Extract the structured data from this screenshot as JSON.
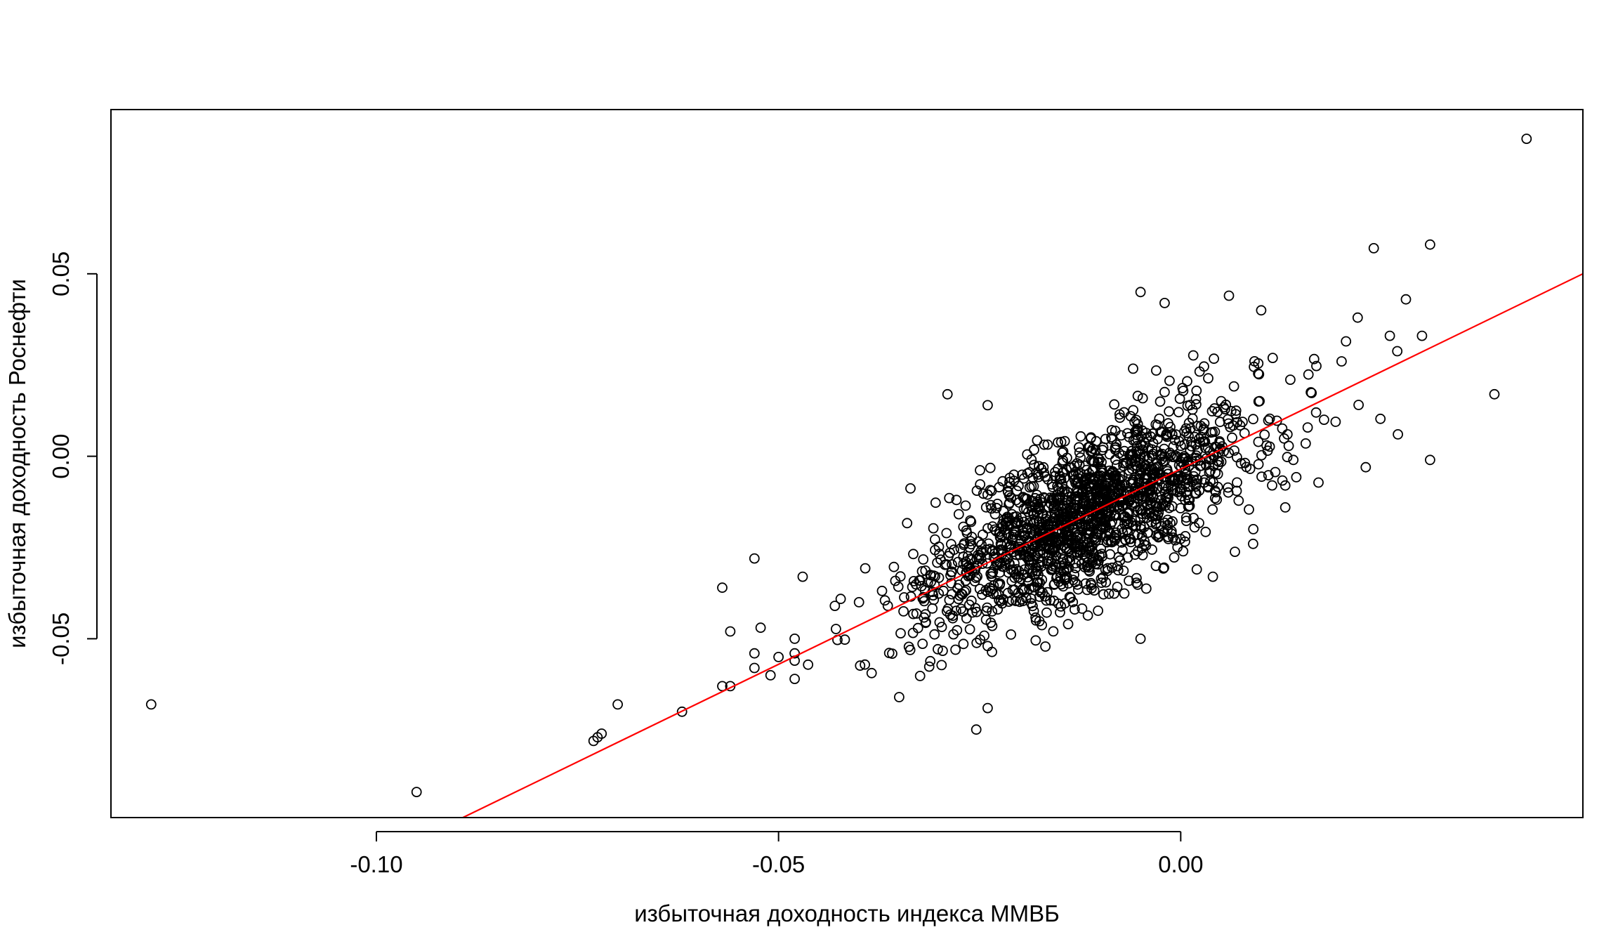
{
  "chart_data": {
    "type": "scatter",
    "title": "",
    "xlabel": "избыточная доходность индекса ММВБ",
    "ylabel": "избыточная доходность Роснефти",
    "xlim": [
      -0.133,
      0.05
    ],
    "ylim": [
      -0.099,
      0.095
    ],
    "x_ticks": [
      -0.1,
      -0.05,
      0.0
    ],
    "x_tick_labels": [
      "-0.10",
      "-0.05",
      "0.00"
    ],
    "y_ticks": [
      -0.05,
      0.0,
      0.05
    ],
    "y_tick_labels": [
      "-0.05",
      "0.00",
      "0.05"
    ],
    "grid": false,
    "point_style": "open-circle",
    "point_color": "#000000",
    "approx_point_count": 1800,
    "regression_line": {
      "color": "#ff0000",
      "intercept": -0.0035,
      "slope": 1.07
    },
    "outliers": [
      {
        "x": -0.128,
        "y": -0.068
      },
      {
        "x": -0.095,
        "y": -0.092
      },
      {
        "x": -0.073,
        "y": -0.078
      },
      {
        "x": -0.0725,
        "y": -0.077
      },
      {
        "x": -0.072,
        "y": -0.076
      },
      {
        "x": -0.07,
        "y": -0.068
      },
      {
        "x": -0.062,
        "y": -0.07
      },
      {
        "x": -0.057,
        "y": -0.063
      },
      {
        "x": -0.056,
        "y": -0.063
      },
      {
        "x": -0.053,
        "y": -0.054
      },
      {
        "x": -0.056,
        "y": -0.048
      },
      {
        "x": -0.057,
        "y": -0.036
      },
      {
        "x": -0.053,
        "y": -0.058
      },
      {
        "x": -0.051,
        "y": -0.06
      },
      {
        "x": -0.048,
        "y": -0.056
      },
      {
        "x": -0.048,
        "y": -0.054
      },
      {
        "x": -0.048,
        "y": -0.05
      },
      {
        "x": -0.047,
        "y": -0.033
      },
      {
        "x": -0.053,
        "y": -0.028
      },
      {
        "x": -0.05,
        "y": -0.055
      },
      {
        "x": -0.043,
        "y": -0.041
      },
      {
        "x": -0.04,
        "y": -0.04
      },
      {
        "x": -0.048,
        "y": -0.061
      },
      {
        "x": -0.024,
        "y": -0.069
      },
      {
        "x": -0.035,
        "y": -0.066
      },
      {
        "x": 0.043,
        "y": 0.087
      },
      {
        "x": 0.024,
        "y": 0.057
      },
      {
        "x": 0.031,
        "y": 0.058
      },
      {
        "x": 0.028,
        "y": 0.043
      },
      {
        "x": 0.022,
        "y": 0.038
      },
      {
        "x": 0.026,
        "y": 0.033
      },
      {
        "x": 0.03,
        "y": 0.033
      },
      {
        "x": 0.039,
        "y": 0.017
      },
      {
        "x": 0.031,
        "y": -0.001
      },
      {
        "x": 0.027,
        "y": 0.006
      },
      {
        "x": 0.023,
        "y": -0.003
      },
      {
        "x": 0.013,
        "y": -0.014
      },
      {
        "x": 0.014,
        "y": -0.001
      },
      {
        "x": -0.005,
        "y": 0.045
      },
      {
        "x": -0.002,
        "y": 0.042
      },
      {
        "x": 0.006,
        "y": 0.044
      },
      {
        "x": 0.01,
        "y": 0.04
      },
      {
        "x": -0.029,
        "y": 0.017
      },
      {
        "x": -0.024,
        "y": 0.014
      },
      {
        "x": -0.005,
        "y": -0.05
      },
      {
        "x": -0.014,
        "y": -0.046
      },
      {
        "x": -0.018,
        "y": -0.045
      },
      {
        "x": -0.028,
        "y": -0.053
      },
      {
        "x": -0.024,
        "y": -0.052
      },
      {
        "x": 0.002,
        "y": -0.031
      },
      {
        "x": 0.004,
        "y": -0.033
      },
      {
        "x": 0.009,
        "y": -0.024
      },
      {
        "x": 0.013,
        "y": -0.008
      },
      {
        "x": 0.02,
        "y": 0.026
      }
    ],
    "cluster": {
      "center_x": -0.012,
      "center_y": -0.0125,
      "sd_x": 0.0105,
      "sd_y": 0.0125,
      "n": 1700
    }
  }
}
